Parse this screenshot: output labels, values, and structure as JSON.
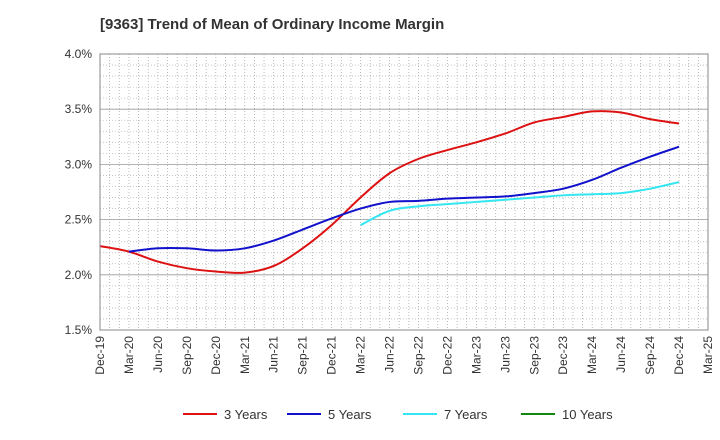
{
  "chart_data": {
    "type": "line",
    "title": "[9363]  Trend of Mean of Ordinary Income Margin",
    "xlabel": "",
    "ylabel": "",
    "x": [
      "Dec-19",
      "Mar-20",
      "Jun-20",
      "Sep-20",
      "Dec-20",
      "Mar-21",
      "Jun-21",
      "Sep-21",
      "Dec-21",
      "Mar-22",
      "Jun-22",
      "Sep-22",
      "Dec-22",
      "Mar-23",
      "Jun-23",
      "Sep-23",
      "Dec-23",
      "Mar-24",
      "Jun-24",
      "Sep-24",
      "Dec-24",
      "Mar-25"
    ],
    "y_ticks": [
      "1.5%",
      "2.0%",
      "2.5%",
      "3.0%",
      "3.5%",
      "4.0%"
    ],
    "ylim": [
      1.5,
      4.0
    ],
    "grid": true,
    "legend_position": "bottom",
    "series": [
      {
        "name": "3 Years",
        "color": "#dd1111",
        "values": [
          2.26,
          2.21,
          2.12,
          2.06,
          2.03,
          2.02,
          2.08,
          2.24,
          2.45,
          2.7,
          2.92,
          3.05,
          3.13,
          3.2,
          3.28,
          3.38,
          3.43,
          3.48,
          3.47,
          3.41,
          3.37,
          null
        ]
      },
      {
        "name": "5 Years",
        "color": "#1111cc",
        "values": [
          null,
          2.21,
          2.24,
          2.24,
          2.22,
          2.24,
          2.31,
          2.41,
          2.51,
          2.6,
          2.66,
          2.67,
          2.69,
          2.7,
          2.71,
          2.74,
          2.78,
          2.86,
          2.97,
          3.07,
          3.16,
          null
        ]
      },
      {
        "name": "7 Years",
        "color": "#33e6f0",
        "values": [
          null,
          null,
          null,
          null,
          null,
          null,
          null,
          null,
          null,
          2.45,
          2.58,
          2.62,
          2.64,
          2.66,
          2.68,
          2.7,
          2.72,
          2.73,
          2.74,
          2.78,
          2.84,
          null
        ]
      },
      {
        "name": "10 Years",
        "color": "#118811",
        "values": [
          null,
          null,
          null,
          null,
          null,
          null,
          null,
          null,
          null,
          null,
          null,
          null,
          null,
          null,
          null,
          null,
          null,
          null,
          null,
          null,
          null,
          null
        ]
      }
    ]
  }
}
